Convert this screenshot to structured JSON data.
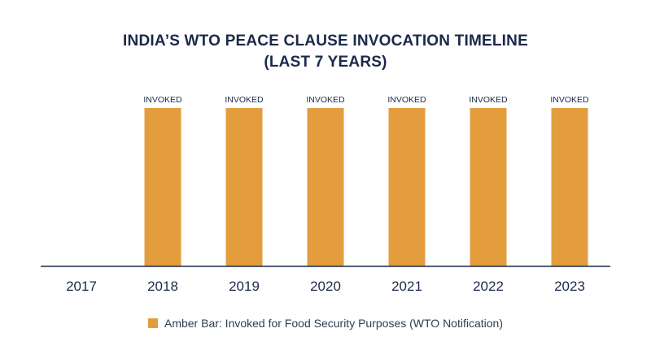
{
  "chart_data": {
    "type": "bar",
    "title_line1": "INDIA’S WTO PEACE CLAUSE INVOCATION TIMELINE",
    "title_line2": "(LAST 7 YEARS)",
    "categories": [
      "2017",
      "2018",
      "2019",
      "2020",
      "2021",
      "2022",
      "2023"
    ],
    "series": [
      {
        "values": [
          0,
          1,
          1,
          1,
          1,
          1,
          1
        ],
        "labels": [
          "",
          "INVOKED",
          "INVOKED",
          "INVOKED",
          "INVOKED",
          "INVOKED",
          "INVOKED"
        ],
        "color": "#E39D3D"
      }
    ],
    "ylim": [
      0,
      1
    ],
    "grid": false,
    "legend": {
      "position": "bottom",
      "text": "Amber Bar: Invoked for Food Security Purposes (WTO Notification)",
      "color": "#E39D3D"
    },
    "axis_color": "#1b2a4a"
  }
}
